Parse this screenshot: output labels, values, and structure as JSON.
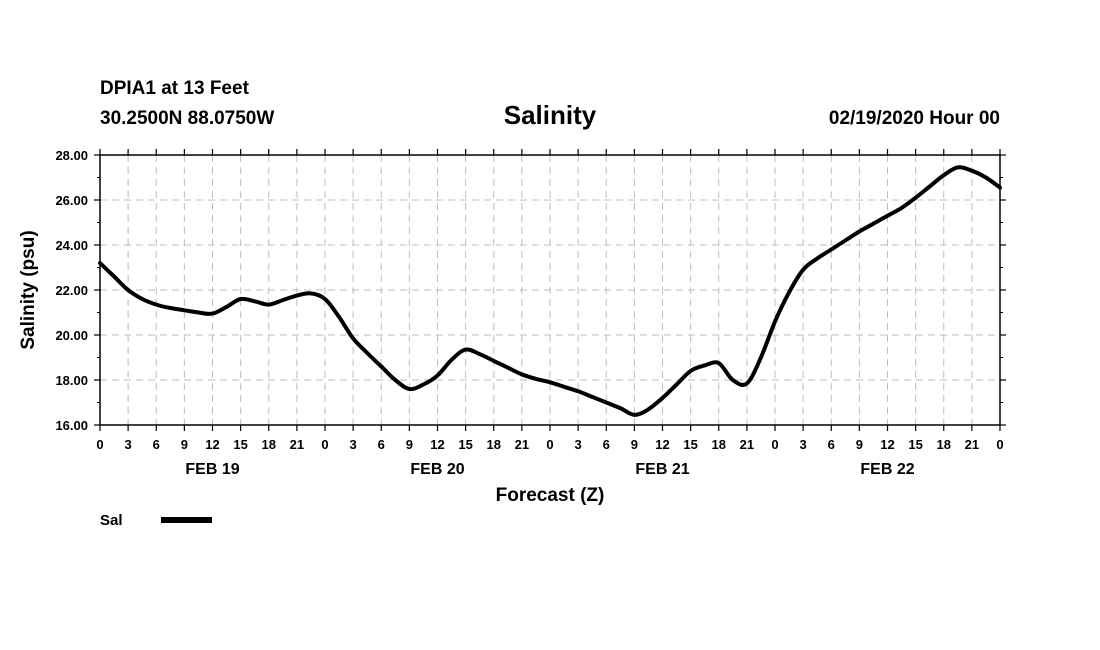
{
  "header": {
    "station": "DPIA1 at 13 Feet",
    "coords": "30.2500N 88.0750W",
    "date": "02/19/2020 Hour 00"
  },
  "chart_data": {
    "type": "line",
    "title": "Salinity",
    "xlabel": "Forecast (Z)",
    "ylabel": "Salinity (psu)",
    "ylim": [
      16,
      28
    ],
    "yticks": [
      "16.00",
      "18.00",
      "20.00",
      "22.00",
      "24.00",
      "26.00",
      "28.00"
    ],
    "x_unit": "hours",
    "xlim": [
      0,
      96
    ],
    "xtick_labels": [
      "0",
      "3",
      "6",
      "9",
      "12",
      "15",
      "18",
      "21",
      "0",
      "3",
      "6",
      "9",
      "12",
      "15",
      "18",
      "21",
      "0",
      "3",
      "6",
      "9",
      "12",
      "15",
      "18",
      "21",
      "0",
      "3",
      "6",
      "9",
      "12",
      "15",
      "18",
      "21",
      "0"
    ],
    "day_labels": [
      {
        "label": "FEB 19",
        "hour": 12
      },
      {
        "label": "FEB 20",
        "hour": 36
      },
      {
        "label": "FEB 21",
        "hour": 60
      },
      {
        "label": "FEB 22",
        "hour": 84
      }
    ],
    "grid": true,
    "legend": "bottom-left",
    "series": [
      {
        "name": "Sal",
        "color": "#000000",
        "x": [
          0,
          1.5,
          3,
          4.5,
          6,
          7.5,
          9,
          10.5,
          12,
          13.5,
          15,
          16.5,
          18,
          19.5,
          21,
          22.5,
          24,
          25.5,
          27,
          28.5,
          30,
          31.5,
          33,
          34.5,
          36,
          37.5,
          39,
          40.5,
          42,
          43.5,
          45,
          46.5,
          48,
          49.5,
          51,
          52.5,
          54,
          55.5,
          57,
          58.5,
          60,
          61.5,
          63,
          64.5,
          66,
          67.5,
          69,
          70.5,
          72,
          73.5,
          75,
          76.5,
          78,
          79.5,
          81,
          82.5,
          84,
          85.5,
          87,
          88.5,
          90,
          91.5,
          93,
          94.5,
          96
        ],
        "y": [
          23.2,
          22.6,
          22.0,
          21.6,
          21.35,
          21.2,
          21.1,
          21.0,
          20.95,
          21.25,
          21.6,
          21.5,
          21.35,
          21.55,
          21.75,
          21.85,
          21.6,
          20.8,
          19.85,
          19.2,
          18.6,
          18.0,
          17.6,
          17.8,
          18.2,
          18.9,
          19.35,
          19.15,
          18.85,
          18.55,
          18.25,
          18.05,
          17.9,
          17.7,
          17.5,
          17.25,
          17.0,
          16.75,
          16.45,
          16.7,
          17.2,
          17.8,
          18.4,
          18.65,
          18.75,
          18.0,
          17.85,
          19.0,
          20.6,
          21.9,
          22.9,
          23.4,
          23.8,
          24.2,
          24.6,
          24.95,
          25.3,
          25.65,
          26.1,
          26.6,
          27.1,
          27.45,
          27.3,
          27.0,
          26.55
        ]
      }
    ]
  }
}
